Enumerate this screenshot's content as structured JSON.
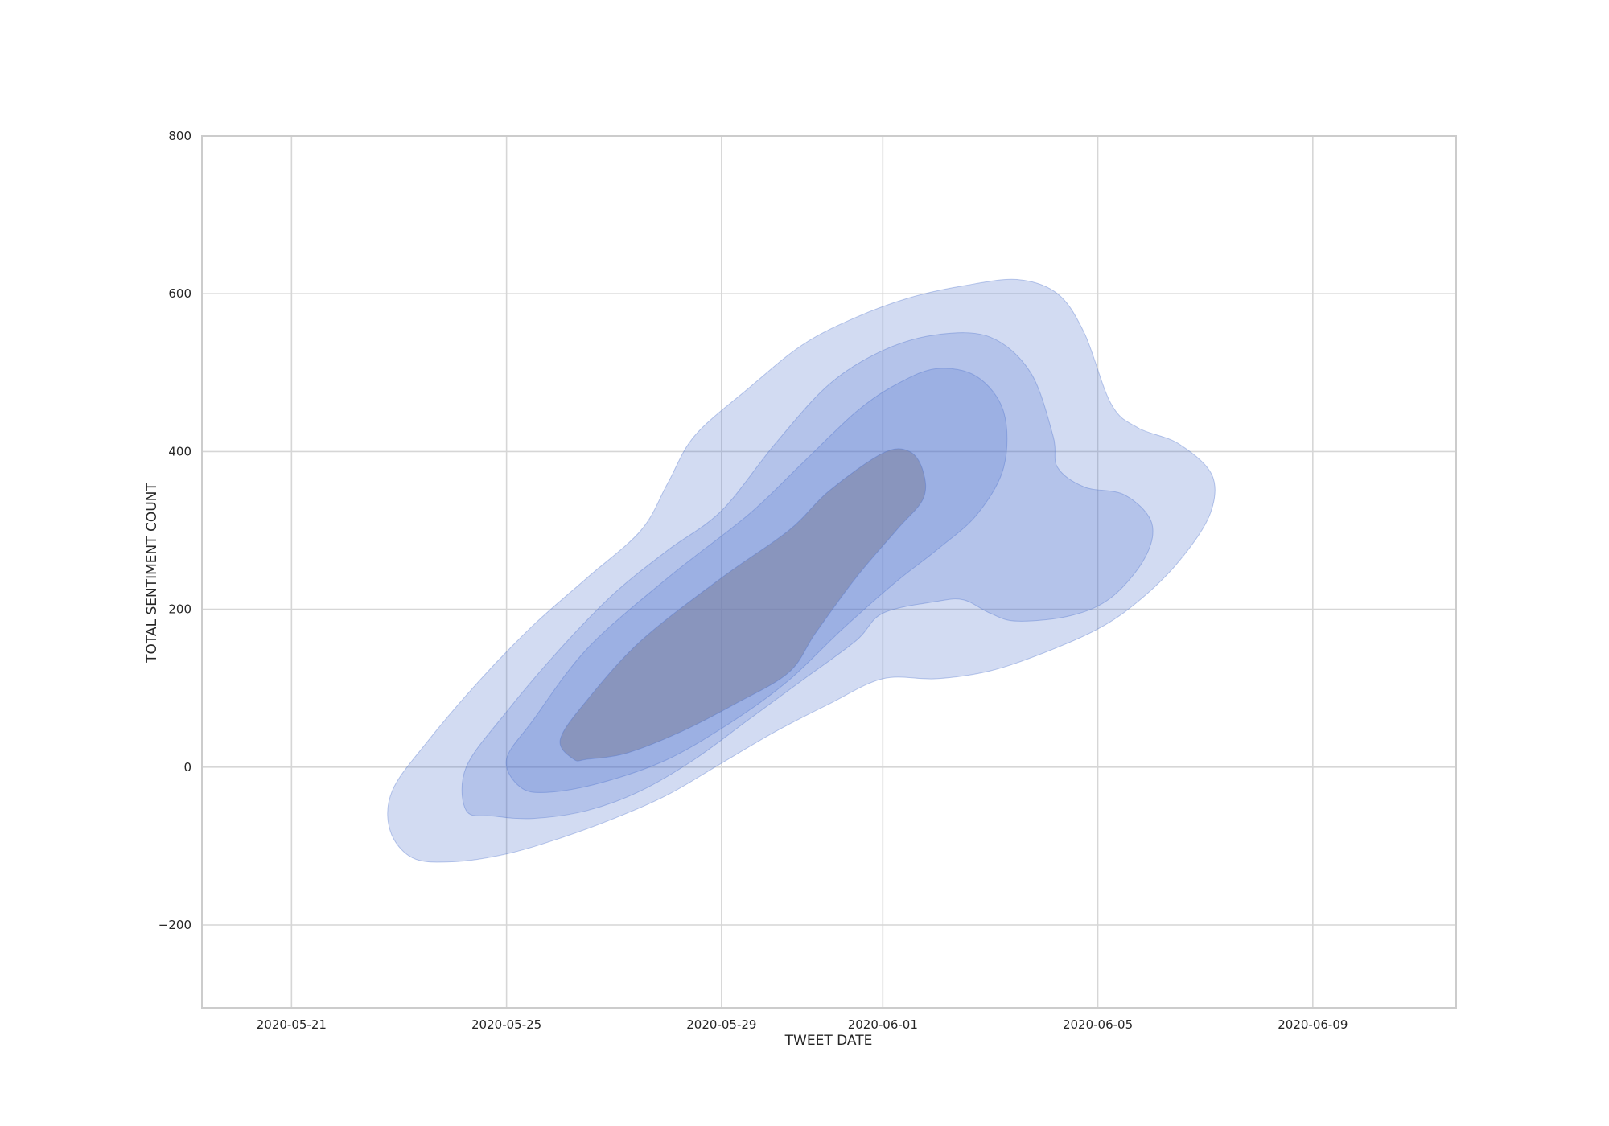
{
  "chart_data": {
    "type": "kde-contour",
    "xlabel": "TWEET DATE",
    "ylabel": "TOTAL SENTIMENT COUNT",
    "x_range": [
      "2020-05-19T08:00",
      "2020-06-11T16:00"
    ],
    "ylim": [
      -305,
      800
    ],
    "x_ticks": [
      "2020-05-21",
      "2020-05-25",
      "2020-05-29",
      "2020-06-01",
      "2020-06-05",
      "2020-06-09"
    ],
    "y_ticks": [
      -200,
      0,
      200,
      400,
      600,
      800
    ],
    "grid": true,
    "legend": "none",
    "colors": {
      "fill": "#4a6fcc",
      "inner_fill": "#7a7f9e",
      "grid": "#d6d6d6",
      "frame": "#cccccc",
      "text": "#262626"
    },
    "levels": [
      {
        "name": "level-1",
        "opacity": 0.25,
        "points": [
          [
            "2020-05-23T06:00",
            -115
          ],
          [
            "2020-05-22T20:00",
            -80
          ],
          [
            "2020-05-22T21:00",
            -30
          ],
          [
            "2020-05-23T12:00",
            30
          ],
          [
            "2020-05-24T12:00",
            110
          ],
          [
            "2020-05-25T12:00",
            180
          ],
          [
            "2020-05-26T12:00",
            240
          ],
          [
            "2020-05-27T12:00",
            300
          ],
          [
            "2020-05-28T00:00",
            360
          ],
          [
            "2020-05-28T12:00",
            420
          ],
          [
            "2020-05-29T12:00",
            480
          ],
          [
            "2020-05-30T12:00",
            535
          ],
          [
            "2020-05-31T12:00",
            570
          ],
          [
            "2020-06-01T12:00",
            595
          ],
          [
            "2020-06-02T12:00",
            610
          ],
          [
            "2020-06-03T12:00",
            618
          ],
          [
            "2020-06-04T06:00",
            600
          ],
          [
            "2020-06-04T18:00",
            550
          ],
          [
            "2020-06-05T06:00",
            460
          ],
          [
            "2020-06-05T18:00",
            430
          ],
          [
            "2020-06-06T12:00",
            410
          ],
          [
            "2020-06-07T03:00",
            370
          ],
          [
            "2020-06-07T02:00",
            320
          ],
          [
            "2020-06-06T12:00",
            260
          ],
          [
            "2020-06-05T18:00",
            210
          ],
          [
            "2020-06-05T00:00",
            175
          ],
          [
            "2020-06-04T00:00",
            145
          ],
          [
            "2020-06-03T00:00",
            122
          ],
          [
            "2020-06-02T00:00",
            112
          ],
          [
            "2020-06-01T00:00",
            112
          ],
          [
            "2020-05-31T00:00",
            80
          ],
          [
            "2020-05-30T00:00",
            45
          ],
          [
            "2020-05-29T00:00",
            5
          ],
          [
            "2020-05-28T00:00",
            -35
          ],
          [
            "2020-05-27T00:00",
            -65
          ],
          [
            "2020-05-26T00:00",
            -90
          ],
          [
            "2020-05-25T00:00",
            -110
          ],
          [
            "2020-05-24T00:00",
            -120
          ]
        ]
      },
      {
        "name": "level-2",
        "opacity": 0.22,
        "points": [
          [
            "2020-05-24T06:00",
            -55
          ],
          [
            "2020-05-24T06:00",
            0
          ],
          [
            "2020-05-25T00:00",
            70
          ],
          [
            "2020-05-26T00:00",
            150
          ],
          [
            "2020-05-27T00:00",
            220
          ],
          [
            "2020-05-28T00:00",
            275
          ],
          [
            "2020-05-29T00:00",
            325
          ],
          [
            "2020-05-30T00:00",
            410
          ],
          [
            "2020-05-31T00:00",
            485
          ],
          [
            "2020-06-01T00:00",
            528
          ],
          [
            "2020-06-02T00:00",
            548
          ],
          [
            "2020-06-03T00:00",
            545
          ],
          [
            "2020-06-03T18:00",
            500
          ],
          [
            "2020-06-04T04:00",
            420
          ],
          [
            "2020-06-04T06:00",
            380
          ],
          [
            "2020-06-04T18:00",
            355
          ],
          [
            "2020-06-05T12:00",
            345
          ],
          [
            "2020-06-06T00:00",
            310
          ],
          [
            "2020-06-05T21:00",
            265
          ],
          [
            "2020-06-05T06:00",
            215
          ],
          [
            "2020-06-04T12:00",
            192
          ],
          [
            "2020-06-03T12:00",
            185
          ],
          [
            "2020-06-03T00:00",
            195
          ],
          [
            "2020-06-02T12:00",
            212
          ],
          [
            "2020-06-02T00:00",
            210
          ],
          [
            "2020-06-01T00:00",
            195
          ],
          [
            "2020-05-31T12:00",
            160
          ],
          [
            "2020-05-30T12:00",
            110
          ],
          [
            "2020-05-29T12:00",
            60
          ],
          [
            "2020-05-28T12:00",
            10
          ],
          [
            "2020-05-27T12:00",
            -30
          ],
          [
            "2020-05-26T12:00",
            -55
          ],
          [
            "2020-05-25T12:00",
            -65
          ],
          [
            "2020-05-24T18:00",
            -62
          ]
        ]
      },
      {
        "name": "level-3",
        "opacity": 0.22,
        "points": [
          [
            "2020-05-25T06:00",
            -25
          ],
          [
            "2020-05-25T00:00",
            10
          ],
          [
            "2020-05-25T12:00",
            60
          ],
          [
            "2020-05-26T12:00",
            150
          ],
          [
            "2020-05-28T00:00",
            240
          ],
          [
            "2020-05-29T12:00",
            320
          ],
          [
            "2020-05-30T12:00",
            385
          ],
          [
            "2020-05-31T12:00",
            450
          ],
          [
            "2020-06-01T06:00",
            485
          ],
          [
            "2020-06-02T00:00",
            505
          ],
          [
            "2020-06-02T18:00",
            495
          ],
          [
            "2020-06-03T06:00",
            450
          ],
          [
            "2020-06-03T06:00",
            380
          ],
          [
            "2020-06-02T18:00",
            320
          ],
          [
            "2020-06-02T00:00",
            275
          ],
          [
            "2020-06-01T06:00",
            235
          ],
          [
            "2020-05-31T06:00",
            175
          ],
          [
            "2020-05-30T06:00",
            110
          ],
          [
            "2020-05-29T06:00",
            60
          ],
          [
            "2020-05-28T00:00",
            10
          ],
          [
            "2020-05-26T18:00",
            -20
          ],
          [
            "2020-05-25T18:00",
            -32
          ]
        ]
      },
      {
        "name": "level-4",
        "opacity": 0.55,
        "points": [
          [
            "2020-05-26T06:00",
            10
          ],
          [
            "2020-05-26T00:00",
            35
          ],
          [
            "2020-05-26T12:00",
            85
          ],
          [
            "2020-05-27T12:00",
            160
          ],
          [
            "2020-05-29T00:00",
            240
          ],
          [
            "2020-05-30T06:00",
            300
          ],
          [
            "2020-05-31T00:00",
            350
          ],
          [
            "2020-06-01T00:00",
            398
          ],
          [
            "2020-06-01T12:00",
            400
          ],
          [
            "2020-06-01T18:00",
            375
          ],
          [
            "2020-06-01T18:00",
            340
          ],
          [
            "2020-06-01T06:00",
            300
          ],
          [
            "2020-05-31T12:00",
            240
          ],
          [
            "2020-05-30T18:00",
            170
          ],
          [
            "2020-05-30T06:00",
            120
          ],
          [
            "2020-05-29T06:00",
            80
          ],
          [
            "2020-05-28T06:00",
            45
          ],
          [
            "2020-05-27T06:00",
            18
          ],
          [
            "2020-05-26T12:00",
            10
          ]
        ]
      }
    ]
  }
}
